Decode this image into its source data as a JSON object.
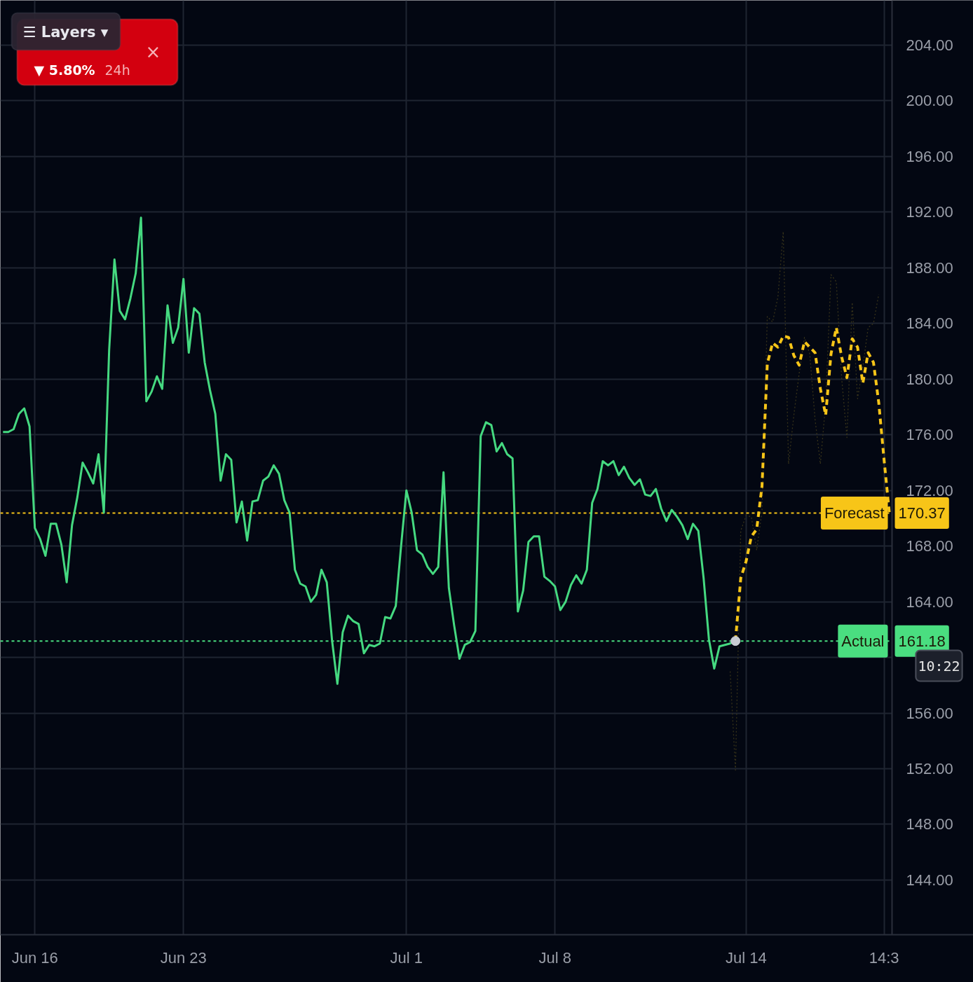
{
  "chart_data": {
    "type": "line",
    "ylim": [
      140.07,
      207.22
    ],
    "categories": [
      null,
      null,
      null,
      null,
      null,
      null,
      "Jun 16",
      null,
      null,
      null,
      null,
      null,
      null,
      null,
      null,
      null,
      null,
      null,
      null,
      null,
      null,
      null,
      null,
      null,
      null,
      null,
      null,
      null,
      null,
      null,
      null,
      null,
      null,
      null,
      "Jun 23",
      null,
      null,
      null,
      null,
      null,
      null,
      null,
      null,
      null,
      null,
      null,
      null,
      null,
      null,
      null,
      null,
      null,
      null,
      null,
      null,
      null,
      null,
      null,
      null,
      null,
      null,
      null,
      null,
      null,
      null,
      null,
      null,
      null,
      null,
      null,
      null,
      null,
      null,
      null,
      null,
      null,
      "Jul 1",
      null,
      null,
      null,
      null,
      null,
      null,
      null,
      null,
      null,
      null,
      null,
      null,
      null,
      null,
      null,
      null,
      null,
      null,
      null,
      null,
      null,
      null,
      null,
      null,
      null,
      null,
      null,
      "Jul 8",
      null,
      null,
      null,
      null,
      null,
      null,
      null,
      null,
      null,
      null,
      null,
      null,
      null,
      null,
      null,
      null,
      null,
      null,
      null,
      null,
      null,
      null,
      null,
      null,
      null,
      null,
      null,
      null,
      null,
      null,
      null,
      null,
      null,
      null,
      null,
      "Jul 14",
      null,
      null,
      null,
      null,
      null,
      null,
      null,
      null,
      null,
      null,
      null,
      null,
      null,
      null,
      null,
      null,
      null,
      null,
      null,
      null,
      null,
      null,
      null,
      null,
      null,
      "14:3",
      null
    ],
    "yticks": [
      {
        "value": 144,
        "label": "144.00"
      },
      {
        "value": 148,
        "label": "148.00"
      },
      {
        "value": 152,
        "label": "152.00"
      },
      {
        "value": 156,
        "label": "156.00"
      },
      {
        "value": 160,
        "label": null
      },
      {
        "value": 164,
        "label": "164.00"
      },
      {
        "value": 168,
        "label": "168.00"
      },
      {
        "value": 172,
        "label": "172.00"
      },
      {
        "value": 176,
        "label": "176.00"
      },
      {
        "value": 180,
        "label": "180.00"
      },
      {
        "value": 184,
        "label": "184.00"
      },
      {
        "value": 188,
        "label": "188.00"
      },
      {
        "value": 192,
        "label": "192.00"
      },
      {
        "value": 196,
        "label": "196.00"
      },
      {
        "value": 200,
        "label": "200.00"
      },
      {
        "value": 204,
        "label": "204.00"
      }
    ],
    "grid": true,
    "line_style": "solid",
    "series": [
      {
        "color": "#37331a",
        "line_style": "dotted",
        "values": [
          null,
          null,
          null,
          null,
          null,
          null,
          null,
          null,
          null,
          null,
          null,
          null,
          null,
          null,
          null,
          null,
          null,
          null,
          null,
          null,
          null,
          null,
          null,
          null,
          null,
          null,
          null,
          null,
          null,
          null,
          null,
          null,
          null,
          null,
          null,
          null,
          null,
          null,
          null,
          null,
          null,
          null,
          null,
          null,
          null,
          null,
          null,
          null,
          null,
          null,
          null,
          null,
          null,
          null,
          null,
          null,
          null,
          null,
          null,
          null,
          null,
          null,
          null,
          null,
          null,
          null,
          null,
          null,
          null,
          null,
          null,
          null,
          null,
          null,
          null,
          null,
          null,
          null,
          null,
          null,
          null,
          null,
          null,
          null,
          null,
          null,
          null,
          null,
          null,
          null,
          null,
          null,
          null,
          null,
          null,
          null,
          null,
          null,
          null,
          null,
          null,
          null,
          null,
          null,
          null,
          null,
          null,
          null,
          null,
          null,
          null,
          null,
          null,
          null,
          null,
          null,
          null,
          null,
          null,
          null,
          null,
          null,
          null,
          null,
          null,
          null,
          null,
          null,
          null,
          null,
          null,
          null,
          null,
          null,
          null,
          null,
          null,
          159.0,
          151.9,
          169.1,
          170.2,
          170.1,
          167.7,
          170.5,
          184.5,
          184.1,
          185.9,
          190.6,
          173.9,
          177.4,
          180.4,
          183.0,
          181.8,
          177.1,
          173.9,
          178.3,
          187.5,
          187.0,
          180.1,
          175.8,
          185.5,
          178.6,
          180.9,
          183.7,
          184.0,
          186.1,
          null,
          null
        ]
      },
      {
        "color": "#45d980",
        "values": [
          176.2,
          176.2,
          176.4,
          177.5,
          177.9,
          176.6,
          169.3,
          168.5,
          167.3,
          169.6,
          169.6,
          168.1,
          165.4,
          169.5,
          171.5,
          174.0,
          173.3,
          172.5,
          174.6,
          170.4,
          182.1,
          188.6,
          184.9,
          184.3,
          185.8,
          187.6,
          191.6,
          178.4,
          179.1,
          180.2,
          179.3,
          185.3,
          182.6,
          183.7,
          187.2,
          181.9,
          185.1,
          184.7,
          181.2,
          179.2,
          177.5,
          172.7,
          174.6,
          174.2,
          169.7,
          171.2,
          168.4,
          171.2,
          171.3,
          172.7,
          173.0,
          173.8,
          173.2,
          171.3,
          170.4,
          166.3,
          165.3,
          165.1,
          164.0,
          164.5,
          166.3,
          165.4,
          161.2,
          158.1,
          161.8,
          163.0,
          162.6,
          162.4,
          160.3,
          160.9,
          160.8,
          161.0,
          162.9,
          162.8,
          163.7,
          168.0,
          172.0,
          170.4,
          167.7,
          167.4,
          166.5,
          166.0,
          166.5,
          173.3,
          165.0,
          162.3,
          159.9,
          160.9,
          161.1,
          161.9,
          175.9,
          176.9,
          176.7,
          174.8,
          175.4,
          174.6,
          174.3,
          163.3,
          164.8,
          168.3,
          168.7,
          168.7,
          165.8,
          165.5,
          165.1,
          163.4,
          164.0,
          165.2,
          165.9,
          165.3,
          166.3,
          171.1,
          172.1,
          174.1,
          173.8,
          174.1,
          173.1,
          173.7,
          172.9,
          172.4,
          172.8,
          171.7,
          171.6,
          172.1,
          170.7,
          169.8,
          170.6,
          170.1,
          169.5,
          168.5,
          169.6,
          169.1,
          165.7,
          161.3,
          159.2,
          160.8,
          160.9,
          161.0,
          161.18,
          null,
          null,
          null,
          null,
          null,
          null,
          null,
          null,
          null,
          null,
          null,
          null,
          null,
          null,
          null,
          null,
          null,
          null,
          null,
          null,
          null,
          null,
          null,
          null,
          null,
          null,
          null,
          null,
          null
        ]
      },
      {
        "color": "#f7c518",
        "line_style": "dashed",
        "values": [
          null,
          null,
          null,
          null,
          null,
          null,
          null,
          null,
          null,
          null,
          null,
          null,
          null,
          null,
          null,
          null,
          null,
          null,
          null,
          null,
          null,
          null,
          null,
          null,
          null,
          null,
          null,
          null,
          null,
          null,
          null,
          null,
          null,
          null,
          null,
          null,
          null,
          null,
          null,
          null,
          null,
          null,
          null,
          null,
          null,
          null,
          null,
          null,
          null,
          null,
          null,
          null,
          null,
          null,
          null,
          null,
          null,
          null,
          null,
          null,
          null,
          null,
          null,
          null,
          null,
          null,
          null,
          null,
          null,
          null,
          null,
          null,
          null,
          null,
          null,
          null,
          null,
          null,
          null,
          null,
          null,
          null,
          null,
          null,
          null,
          null,
          null,
          null,
          null,
          null,
          null,
          null,
          null,
          null,
          null,
          null,
          null,
          null,
          null,
          null,
          null,
          null,
          null,
          null,
          null,
          null,
          null,
          null,
          null,
          null,
          null,
          null,
          null,
          null,
          null,
          null,
          null,
          null,
          null,
          null,
          null,
          null,
          null,
          null,
          null,
          null,
          null,
          null,
          null,
          null,
          null,
          null,
          null,
          null,
          null,
          null,
          null,
          null,
          161.18,
          165.7,
          166.9,
          168.7,
          169.2,
          172.3,
          181.1,
          182.6,
          182.3,
          183.1,
          183.0,
          181.7,
          181.0,
          182.7,
          182.3,
          181.9,
          179.3,
          177.4,
          181.8,
          183.7,
          181.6,
          180.1,
          182.9,
          182.3,
          179.7,
          181.9,
          181.2,
          178.3,
          174.2,
          170.37
        ]
      },
      {
        "type": "scatter",
        "marker": "circle",
        "color": "#c9ccd4",
        "values": [
          null,
          null,
          null,
          null,
          null,
          null,
          null,
          null,
          null,
          null,
          null,
          null,
          null,
          null,
          null,
          null,
          null,
          null,
          null,
          null,
          null,
          null,
          null,
          null,
          null,
          null,
          null,
          null,
          null,
          null,
          null,
          null,
          null,
          null,
          null,
          null,
          null,
          null,
          null,
          null,
          null,
          null,
          null,
          null,
          null,
          null,
          null,
          null,
          null,
          null,
          null,
          null,
          null,
          null,
          null,
          null,
          null,
          null,
          null,
          null,
          null,
          null,
          null,
          null,
          null,
          null,
          null,
          null,
          null,
          null,
          null,
          null,
          null,
          null,
          null,
          null,
          null,
          null,
          null,
          null,
          null,
          null,
          null,
          null,
          null,
          null,
          null,
          null,
          null,
          null,
          null,
          null,
          null,
          null,
          null,
          null,
          null,
          null,
          null,
          null,
          null,
          null,
          null,
          null,
          null,
          null,
          null,
          null,
          null,
          null,
          null,
          null,
          null,
          null,
          null,
          null,
          null,
          null,
          null,
          null,
          null,
          null,
          null,
          null,
          null,
          null,
          null,
          null,
          null,
          null,
          null,
          null,
          null,
          null,
          null,
          null,
          null,
          null,
          161.18,
          null,
          null,
          null,
          null,
          null,
          null,
          null,
          null,
          null,
          null,
          null,
          null,
          null,
          null,
          null,
          null,
          null,
          null,
          null,
          null,
          null,
          null,
          null,
          null,
          null,
          null,
          null,
          null,
          null
        ]
      }
    ],
    "ref_lines": [
      {
        "axis": "y",
        "value": 170.37,
        "label": "Forecast",
        "color": "#f7c518",
        "line_style": "dotted"
      },
      {
        "axis": "y",
        "value": 161.18,
        "label": "Actual",
        "color": "#4ade80",
        "line_style": "dotted"
      }
    ],
    "annotations": [
      "☰ Layers ▾",
      "▼ 5.80%",
      "24h",
      "×",
      {
        "text": "170.37",
        "y": 170.37
      },
      {
        "text": "161.18",
        "y": 161.18
      },
      "10:22"
    ]
  }
}
